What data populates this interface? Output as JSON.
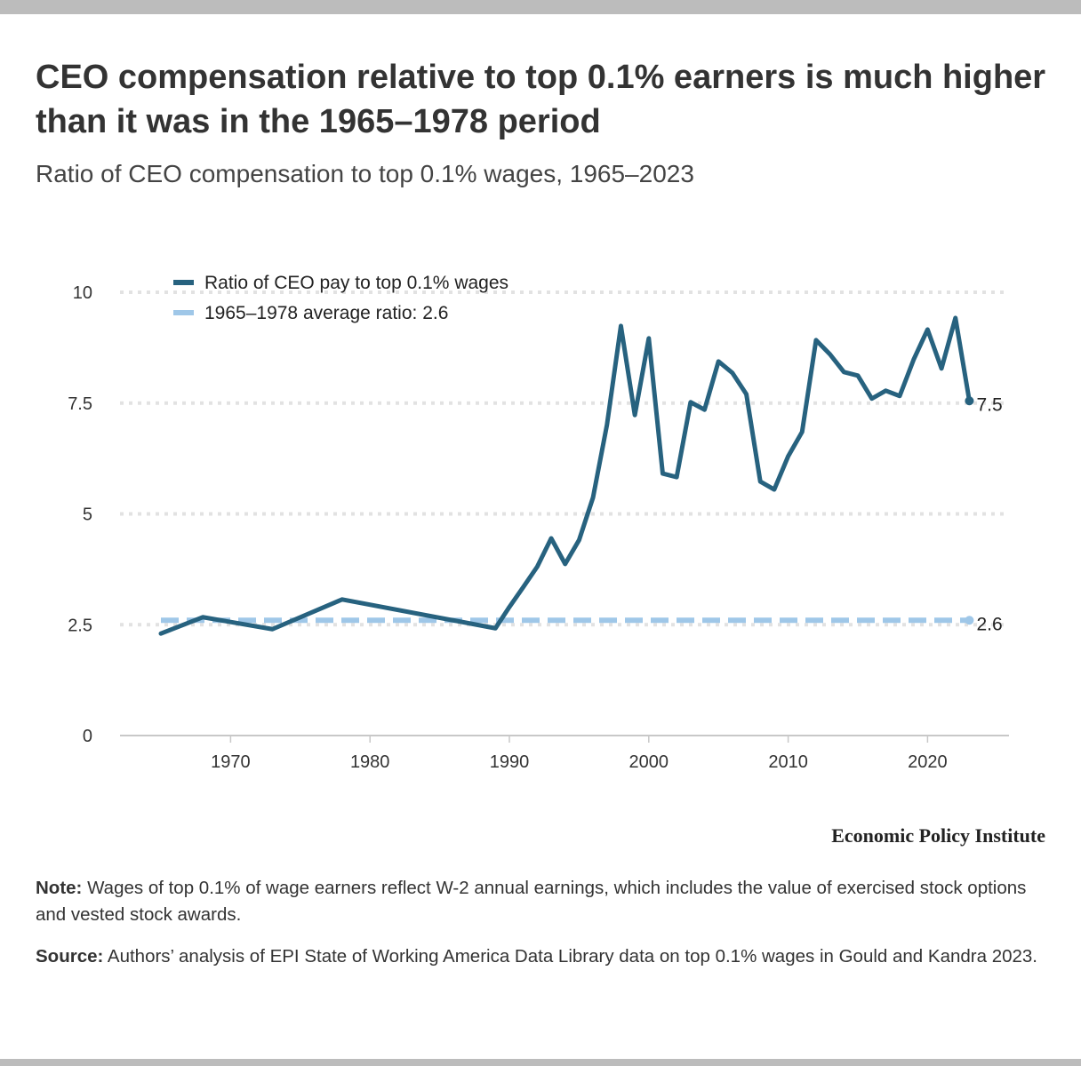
{
  "title": "CEO compensation relative to top 0.1% earners is much higher than it was in the 1965–1978 period",
  "subtitle": "Ratio of CEO compensation to top 0.1% wages, 1965–2023",
  "brand": "Economic Policy Institute",
  "note_label": "Note:",
  "note_text": " Wages of top 0.1% of wage earners reflect W-2 annual earnings, which includes the value of exercised stock options and vested stock awards.",
  "source_label": "Source:",
  "source_text": " Authors’ analysis of EPI State of Working America Data Library data on top 0.1% wages in Gould and Kandra 2023.",
  "chart_data": {
    "type": "line",
    "title": "",
    "xlabel": "",
    "ylabel": "",
    "xlim": [
      1962,
      2026
    ],
    "ylim": [
      0,
      10
    ],
    "xticks": [
      "1970",
      "1980",
      "1990",
      "2000",
      "2010",
      "2020"
    ],
    "yticks": [
      "0",
      "2.5",
      "5",
      "7.5",
      "10"
    ],
    "grid": true,
    "legend_position": "top-left",
    "series": [
      {
        "name": "Ratio of CEO pay to top 0.1% wages",
        "color": "#27627f",
        "style": "solid",
        "end_label": "7.5",
        "x": [
          1965,
          1968,
          1973,
          1978,
          1989,
          1990,
          1991,
          1992,
          1993,
          1994,
          1995,
          1996,
          1997,
          1998,
          1999,
          2000,
          2001,
          2002,
          2003,
          2004,
          2005,
          2006,
          2007,
          2008,
          2009,
          2010,
          2011,
          2012,
          2013,
          2014,
          2015,
          2016,
          2017,
          2018,
          2019,
          2020,
          2021,
          2022,
          2023
        ],
        "y": [
          2.3,
          2.67,
          2.4,
          3.07,
          2.42,
          2.9,
          3.35,
          3.81,
          4.45,
          3.87,
          4.41,
          5.37,
          7.01,
          9.24,
          7.23,
          8.96,
          5.91,
          5.83,
          7.52,
          7.35,
          8.44,
          8.18,
          7.7,
          5.73,
          5.55,
          6.3,
          6.85,
          8.92,
          8.6,
          8.2,
          8.12,
          7.6,
          7.78,
          7.66,
          8.48,
          9.16,
          8.28,
          9.42,
          7.55
        ]
      },
      {
        "name": "1965–1978 average ratio: 2.6",
        "color": "#9fc7e8",
        "style": "dashed",
        "end_label": "2.6",
        "x": [
          1965,
          2023
        ],
        "y": [
          2.6,
          2.6
        ]
      }
    ]
  }
}
